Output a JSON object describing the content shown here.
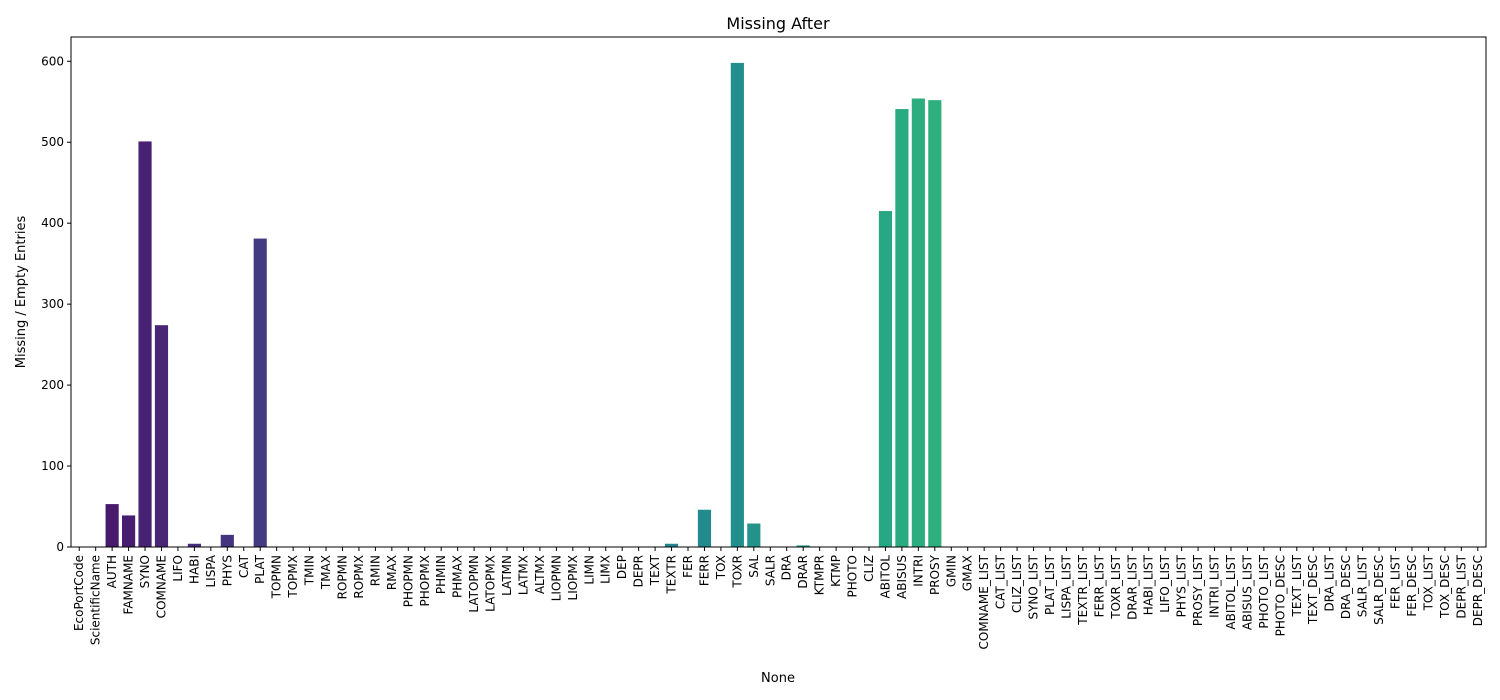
{
  "chart_data": {
    "type": "bar",
    "title": "Missing After",
    "xlabel": "None",
    "ylabel": "Missing / Empty Entries",
    "ylim": [
      0,
      630
    ],
    "yticks": [
      0,
      100,
      200,
      300,
      400,
      500,
      600
    ],
    "grid": false,
    "legend": "none",
    "categories": [
      "EcoPortCode",
      "ScientificName",
      "AUTH",
      "FAMNAME",
      "SYNO",
      "COMNAME",
      "LIFO",
      "HABI",
      "LISPA",
      "PHYS",
      "CAT",
      "PLAT",
      "TOPMN",
      "TOPMX",
      "TMIN",
      "TMAX",
      "ROPMN",
      "ROPMX",
      "RMIN",
      "RMAX",
      "PHOPMN",
      "PHOPMX",
      "PHMIN",
      "PHMAX",
      "LATOPMN",
      "LATOPMX",
      "LATMN",
      "LATMX",
      "ALTMX",
      "LIOPMN",
      "LIOPMX",
      "LIMN",
      "LIMX",
      "DEP",
      "DEPR",
      "TEXT",
      "TEXTR",
      "FER",
      "FERR",
      "TOX",
      "TOXR",
      "SAL",
      "SALR",
      "DRA",
      "DRAR",
      "KTMPR",
      "KTMP",
      "PHOTO",
      "CLIZ",
      "ABITOL",
      "ABISUS",
      "INTRI",
      "PROSY",
      "GMIN",
      "GMAX",
      "COMNAME_LIST",
      "CAT_LIST",
      "CLIZ_LIST",
      "SYNO_LIST",
      "PLAT_LIST",
      "LISPA_LIST",
      "TEXTR_LIST",
      "FERR_LIST",
      "TOXR_LIST",
      "DRAR_LIST",
      "HABI_LIST",
      "LIFO_LIST",
      "PHYS_LIST",
      "PROSY_LIST",
      "INTRI_LIST",
      "ABITOL_LIST",
      "ABISUS_LIST",
      "PHOTO_LIST",
      "PHOTO_DESC",
      "TEXT_LIST",
      "TEXT_DESC",
      "DRA_LIST",
      "DRA_DESC",
      "SALR_LIST",
      "SALR_DESC",
      "FER_LIST",
      "FER_DESC",
      "TOX_LIST",
      "TOX_DESC",
      "DEPR_LIST",
      "DEPR_DESC"
    ],
    "values": [
      0,
      0,
      53,
      39,
      501,
      274,
      0,
      4,
      0,
      15,
      0,
      381,
      0,
      0,
      0,
      0,
      0,
      0,
      0,
      0,
      0,
      0,
      0,
      0,
      0,
      0,
      0,
      0,
      0,
      0,
      0,
      0,
      0,
      0,
      0,
      0,
      4,
      0,
      46,
      0,
      598,
      29,
      0,
      0,
      2,
      0,
      0,
      0,
      0,
      415,
      541,
      554,
      552,
      0,
      0,
      0,
      0,
      0,
      0,
      0,
      0,
      0,
      0,
      0,
      0,
      0,
      0,
      0,
      0,
      0,
      0,
      0,
      0,
      0,
      0,
      0,
      0,
      0,
      0,
      0,
      0,
      0,
      0,
      0,
      0,
      0
    ]
  }
}
